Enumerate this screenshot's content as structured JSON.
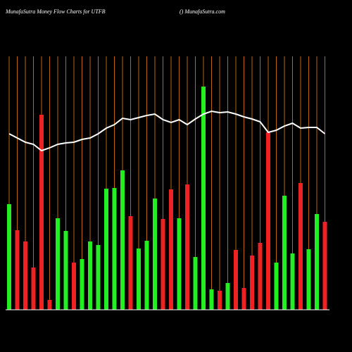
{
  "chart_data": {
    "type": "bar",
    "title": "MunafaSutra  Money Flow  Charts for UTFB",
    "subtitle": "() MunafaSutra.com",
    "values": [
      150,
      113,
      97,
      60,
      277,
      14,
      130,
      112,
      67,
      72,
      97,
      92,
      172,
      173,
      198,
      133,
      87,
      98,
      158,
      129,
      171,
      130,
      178,
      75,
      317,
      29,
      27,
      38,
      85,
      31,
      77,
      95,
      252,
      67,
      162,
      80,
      180,
      86,
      136,
      125
    ],
    "colors": [
      "#22ee22",
      "#ee2222",
      "#ee2222",
      "#ee2222",
      "#ee2222",
      "#ee2222",
      "#22ee22",
      "#22ee22",
      "#ee2222",
      "#22ee22",
      "#22ee22",
      "#22ee22",
      "#22ee22",
      "#22ee22",
      "#22ee22",
      "#ee2222",
      "#22ee22",
      "#22ee22",
      "#22ee22",
      "#ee2222",
      "#ee2222",
      "#22ee22",
      "#ee2222",
      "#22ee22",
      "#22ee22",
      "#22ee22",
      "#ee2222",
      "#22ee22",
      "#ee2222",
      "#ee2222",
      "#ee2222",
      "#ee2222",
      "#ee2222",
      "#22ee22",
      "#22ee22",
      "#22ee22",
      "#ee2222",
      "#22ee22",
      "#22ee22",
      "#ee2222"
    ],
    "line": {
      "color": "#ffffff",
      "values": [
        250,
        244,
        238,
        235,
        226,
        230,
        235,
        237,
        238,
        242,
        244,
        250,
        258,
        263,
        272,
        270,
        273,
        276,
        278,
        270,
        266,
        270,
        263,
        271,
        278,
        282,
        280,
        281,
        278,
        274,
        271,
        267,
        252,
        255,
        261,
        265,
        258,
        259,
        259,
        250
      ]
    },
    "ylim": [
      0,
      360
    ],
    "grid_color": "#b8660b"
  }
}
